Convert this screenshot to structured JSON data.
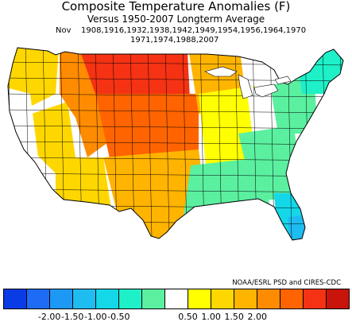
{
  "title": "Composite Temperature Anomalies (F)",
  "subtitle": "Versus 1950-2007 Longterm Average",
  "month": "Nov",
  "years_line1": "1908,1916,1932,1938,1942,1949,1954,1956,1964,1970",
  "years_line2": "1971,1974,1988,2007",
  "credit": "NOAA/ESRL PSD and CIRES-CDC",
  "legend": {
    "colors": [
      "#0a3ce6",
      "#1e6cf5",
      "#1e98f5",
      "#1ebcf0",
      "#14d8e8",
      "#1ef0c8",
      "#5af0a0",
      "#ffffff",
      "#ffff00",
      "#ffd700",
      "#ffb400",
      "#ff8c00",
      "#ff6400",
      "#f53214",
      "#c8140a"
    ],
    "ticks": [
      "-2.00",
      "-1.50",
      "-1.00",
      "-0.50",
      "0.50",
      "1.00",
      "1.50",
      "2.00"
    ]
  },
  "map_regions": [
    {
      "name": "pacific-northwest",
      "color": "#ffd700"
    },
    {
      "name": "california-coast",
      "color": "#ffffff"
    },
    {
      "name": "great-basin",
      "color": "#ffd700"
    },
    {
      "name": "desert-southwest",
      "color": "#ffd700"
    },
    {
      "name": "northern-rockies",
      "color": "#ff8c00"
    },
    {
      "name": "montana-dakotas",
      "color": "#f53214"
    },
    {
      "name": "central-plains",
      "color": "#ff6400"
    },
    {
      "name": "southern-plains",
      "color": "#ffb400"
    },
    {
      "name": "upper-midwest",
      "color": "#ffb400"
    },
    {
      "name": "midwest",
      "color": "#ffff00"
    },
    {
      "name": "ohio-valley",
      "color": "#ffffff"
    },
    {
      "name": "southeast",
      "color": "#5af0a0"
    },
    {
      "name": "mid-atlantic",
      "color": "#5af0a0"
    },
    {
      "name": "new-england",
      "color": "#1ef0c8"
    },
    {
      "name": "florida-peninsula",
      "color": "#14d8e8"
    },
    {
      "name": "south-florida",
      "color": "#1ebcf0"
    },
    {
      "name": "gulf-coast",
      "color": "#5af0a0"
    },
    {
      "name": "texas-south",
      "color": "#ffb400"
    }
  ]
}
